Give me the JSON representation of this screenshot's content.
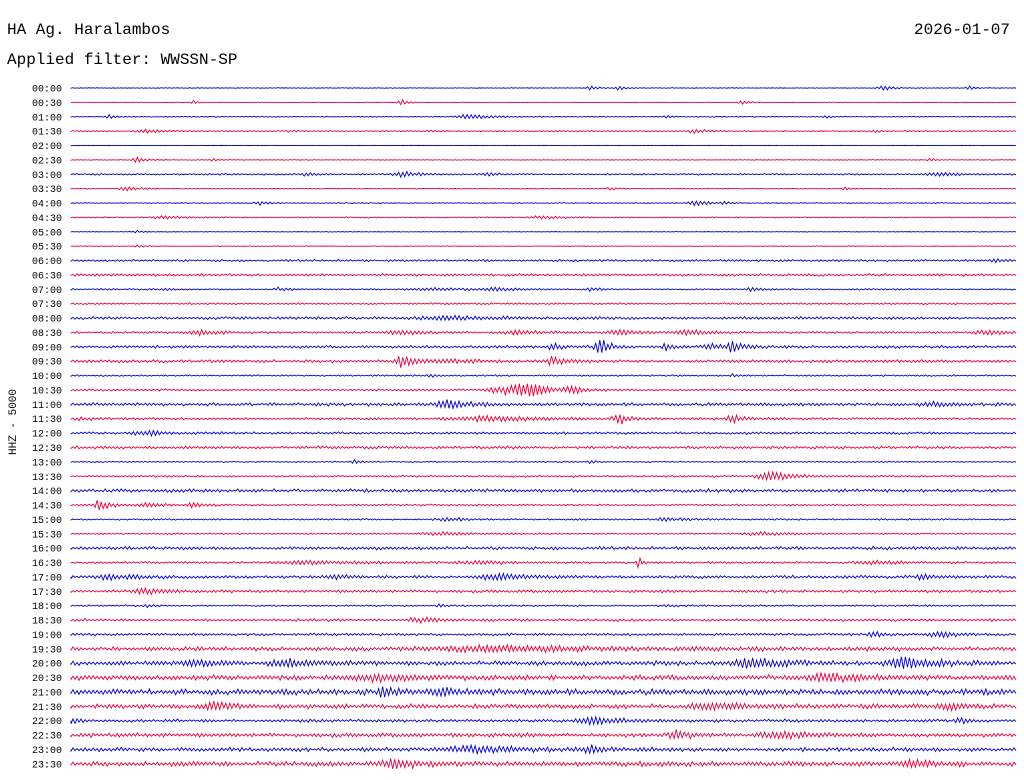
{
  "header": {
    "station": "HA Ag. Haralambos",
    "date": "2026-01-07",
    "filter": "Applied filter: WWSSN-SP"
  },
  "colors": {
    "even": "#0000cc",
    "odd": "#e8003c"
  },
  "chart_data": {
    "type": "line",
    "title": "HA Ag. Haralambos",
    "ylabel": "HHZ - 5000",
    "rows": [
      {
        "label": "00:00",
        "noise": 0.35,
        "events": [
          [
            0.55,
            3,
            0.006
          ],
          [
            0.58,
            3,
            0.006
          ],
          [
            0.86,
            3,
            0.01
          ],
          [
            0.95,
            3,
            0.005
          ]
        ]
      },
      {
        "label": "00:30",
        "noise": 0.25,
        "events": [
          [
            0.13,
            3,
            0.004
          ],
          [
            0.35,
            4,
            0.006
          ],
          [
            0.71,
            3,
            0.006
          ]
        ]
      },
      {
        "label": "01:00",
        "noise": 0.4,
        "events": [
          [
            0.04,
            3,
            0.005
          ],
          [
            0.42,
            3,
            0.02
          ],
          [
            0.63,
            2,
            0.005
          ],
          [
            0.8,
            2,
            0.005
          ]
        ]
      },
      {
        "label": "01:30",
        "noise": 0.5,
        "events": [
          [
            0.08,
            2,
            0.02
          ],
          [
            0.23,
            2,
            0.005
          ],
          [
            0.38,
            2,
            0.005
          ],
          [
            0.66,
            3,
            0.01
          ],
          [
            0.85,
            2,
            0.005
          ]
        ]
      },
      {
        "label": "02:00",
        "noise": 0.2,
        "events": []
      },
      {
        "label": "02:30",
        "noise": 0.35,
        "events": [
          [
            0.07,
            4,
            0.008
          ],
          [
            0.15,
            2,
            0.005
          ],
          [
            0.91,
            2,
            0.005
          ]
        ]
      },
      {
        "label": "03:00",
        "noise": 0.8,
        "events": [
          [
            0.35,
            4,
            0.012
          ],
          [
            0.25,
            2,
            0.01
          ],
          [
            0.44,
            2,
            0.01
          ],
          [
            0.92,
            2,
            0.02
          ]
        ]
      },
      {
        "label": "03:30",
        "noise": 0.4,
        "events": [
          [
            0.06,
            3,
            0.012
          ],
          [
            0.57,
            3,
            0.004
          ],
          [
            0.82,
            3,
            0.004
          ]
        ]
      },
      {
        "label": "04:00",
        "noise": 0.4,
        "events": [
          [
            0.66,
            4,
            0.012
          ],
          [
            0.2,
            2,
            0.01
          ],
          [
            0.69,
            2,
            0.005
          ]
        ]
      },
      {
        "label": "04:30",
        "noise": 0.6,
        "events": [
          [
            0.1,
            2,
            0.02
          ],
          [
            0.5,
            2,
            0.02
          ]
        ]
      },
      {
        "label": "05:00",
        "noise": 0.3,
        "events": [
          [
            0.07,
            2,
            0.005
          ]
        ]
      },
      {
        "label": "05:30",
        "noise": 0.3,
        "events": [
          [
            0.07,
            2,
            0.005
          ]
        ]
      },
      {
        "label": "06:00",
        "noise": 1.0,
        "events": [
          [
            0.98,
            2,
            0.01
          ]
        ]
      },
      {
        "label": "06:30",
        "noise": 1.2,
        "events": []
      },
      {
        "label": "07:00",
        "noise": 0.7,
        "events": [
          [
            0.1,
            2,
            0.005
          ],
          [
            0.22,
            2,
            0.01
          ],
          [
            0.38,
            2,
            0.03
          ],
          [
            0.45,
            2,
            0.02
          ],
          [
            0.55,
            2,
            0.01
          ],
          [
            0.72,
            2,
            0.01
          ]
        ]
      },
      {
        "label": "07:30",
        "noise": 0.9,
        "events": []
      },
      {
        "label": "08:00",
        "noise": 1.4,
        "events": [
          [
            0.4,
            2,
            0.05
          ]
        ]
      },
      {
        "label": "08:30",
        "noise": 1.0,
        "events": [
          [
            0.14,
            3,
            0.02
          ],
          [
            0.35,
            3,
            0.02
          ],
          [
            0.47,
            3,
            0.02
          ],
          [
            0.58,
            3,
            0.02
          ],
          [
            0.65,
            3,
            0.02
          ],
          [
            0.97,
            3,
            0.02
          ]
        ]
      },
      {
        "label": "09:00",
        "noise": 1.3,
        "events": [
          [
            0.56,
            12,
            0.008
          ],
          [
            0.51,
            4,
            0.01
          ],
          [
            0.63,
            4,
            0.008
          ],
          [
            0.68,
            3,
            0.02
          ],
          [
            0.7,
            5,
            0.01
          ]
        ]
      },
      {
        "label": "09:30",
        "noise": 1.5,
        "events": [
          [
            0.35,
            7,
            0.012
          ],
          [
            0.51,
            5,
            0.012
          ],
          [
            0.4,
            2,
            0.02
          ]
        ]
      },
      {
        "label": "10:00",
        "noise": 0.8,
        "events": [
          [
            0.38,
            2,
            0.005
          ],
          [
            0.7,
            2,
            0.005
          ]
        ]
      },
      {
        "label": "10:30",
        "noise": 1.0,
        "events": [
          [
            0.48,
            13,
            0.012
          ],
          [
            0.46,
            5,
            0.03
          ],
          [
            0.53,
            5,
            0.01
          ]
        ]
      },
      {
        "label": "11:00",
        "noise": 1.5,
        "events": [
          [
            0.4,
            5,
            0.02
          ],
          [
            0.91,
            2,
            0.02
          ]
        ]
      },
      {
        "label": "11:30",
        "noise": 1.1,
        "events": [
          [
            0.01,
            2,
            0.01
          ],
          [
            0.44,
            3,
            0.06
          ],
          [
            0.58,
            6,
            0.01
          ],
          [
            0.7,
            5,
            0.01
          ]
        ]
      },
      {
        "label": "12:00",
        "noise": 1.2,
        "events": [
          [
            0.08,
            3,
            0.02
          ]
        ]
      },
      {
        "label": "12:30",
        "noise": 1.4,
        "events": []
      },
      {
        "label": "13:00",
        "noise": 0.6,
        "events": [
          [
            0.3,
            3,
            0.005
          ],
          [
            0.55,
            2,
            0.005
          ]
        ]
      },
      {
        "label": "13:30",
        "noise": 0.9,
        "events": [
          [
            0.74,
            6,
            0.02
          ]
        ]
      },
      {
        "label": "14:00",
        "noise": 1.6,
        "events": []
      },
      {
        "label": "14:30",
        "noise": 0.9,
        "events": [
          [
            0.03,
            8,
            0.008
          ],
          [
            0.08,
            3,
            0.015
          ],
          [
            0.13,
            3,
            0.01
          ]
        ]
      },
      {
        "label": "15:00",
        "noise": 0.8,
        "events": [
          [
            0.4,
            2,
            0.02
          ],
          [
            0.63,
            2,
            0.02
          ]
        ]
      },
      {
        "label": "15:30",
        "noise": 0.7,
        "events": [
          [
            0.39,
            2,
            0.03
          ],
          [
            0.73,
            2,
            0.03
          ]
        ]
      },
      {
        "label": "16:00",
        "noise": 1.5,
        "events": []
      },
      {
        "label": "16:30",
        "noise": 1.0,
        "events": [
          [
            0.6,
            8,
            0.003
          ],
          [
            0.25,
            2,
            0.05
          ],
          [
            0.43,
            2,
            0.03
          ],
          [
            0.85,
            2,
            0.03
          ]
        ]
      },
      {
        "label": "17:00",
        "noise": 1.5,
        "events": [
          [
            0.04,
            3,
            0.02
          ],
          [
            0.28,
            3,
            0.01
          ],
          [
            0.45,
            3,
            0.03
          ],
          [
            0.9,
            4,
            0.01
          ]
        ]
      },
      {
        "label": "17:30",
        "noise": 1.4,
        "events": [
          [
            0.08,
            3,
            0.02
          ]
        ]
      },
      {
        "label": "18:00",
        "noise": 0.8,
        "events": [
          [
            0.08,
            2,
            0.005
          ],
          [
            0.39,
            2,
            0.005
          ],
          [
            0.63,
            2,
            0.005
          ]
        ]
      },
      {
        "label": "18:30",
        "noise": 1.3,
        "events": [
          [
            0.37,
            3,
            0.02
          ]
        ]
      },
      {
        "label": "19:00",
        "noise": 1.2,
        "events": [
          [
            0.85,
            3,
            0.01
          ],
          [
            0.92,
            3,
            0.02
          ]
        ]
      },
      {
        "label": "19:30",
        "noise": 2.0,
        "events": [
          [
            0.45,
            3,
            0.1
          ]
        ]
      },
      {
        "label": "20:00",
        "noise": 2.2,
        "events": [
          [
            0.13,
            3,
            0.02
          ],
          [
            0.23,
            4,
            0.03
          ],
          [
            0.72,
            5,
            0.03
          ],
          [
            0.88,
            6,
            0.03
          ]
        ]
      },
      {
        "label": "20:30",
        "noise": 2.5,
        "events": [
          [
            0.32,
            3,
            0.05
          ],
          [
            0.8,
            4,
            0.03
          ]
        ]
      },
      {
        "label": "21:00",
        "noise": 2.8,
        "events": [
          [
            0.33,
            5,
            0.01
          ],
          [
            0.39,
            4,
            0.02
          ]
        ]
      },
      {
        "label": "21:30",
        "noise": 2.2,
        "events": [
          [
            0.15,
            4,
            0.02
          ],
          [
            0.68,
            4,
            0.03
          ],
          [
            0.93,
            3,
            0.02
          ]
        ]
      },
      {
        "label": "22:00",
        "noise": 1.5,
        "events": [
          [
            0.0,
            6,
            0.004
          ],
          [
            0.55,
            6,
            0.02
          ],
          [
            0.94,
            3,
            0.01
          ]
        ]
      },
      {
        "label": "22:30",
        "noise": 2.0,
        "events": [
          [
            0.64,
            6,
            0.01
          ],
          [
            0.75,
            4,
            0.03
          ]
        ]
      },
      {
        "label": "23:00",
        "noise": 2.0,
        "events": [
          [
            0.43,
            3,
            0.05
          ],
          [
            0.55,
            4,
            0.01
          ]
        ]
      },
      {
        "label": "23:30",
        "noise": 2.3,
        "events": [
          [
            0.34,
            6,
            0.02
          ],
          [
            0.89,
            3,
            0.02
          ]
        ]
      }
    ]
  }
}
